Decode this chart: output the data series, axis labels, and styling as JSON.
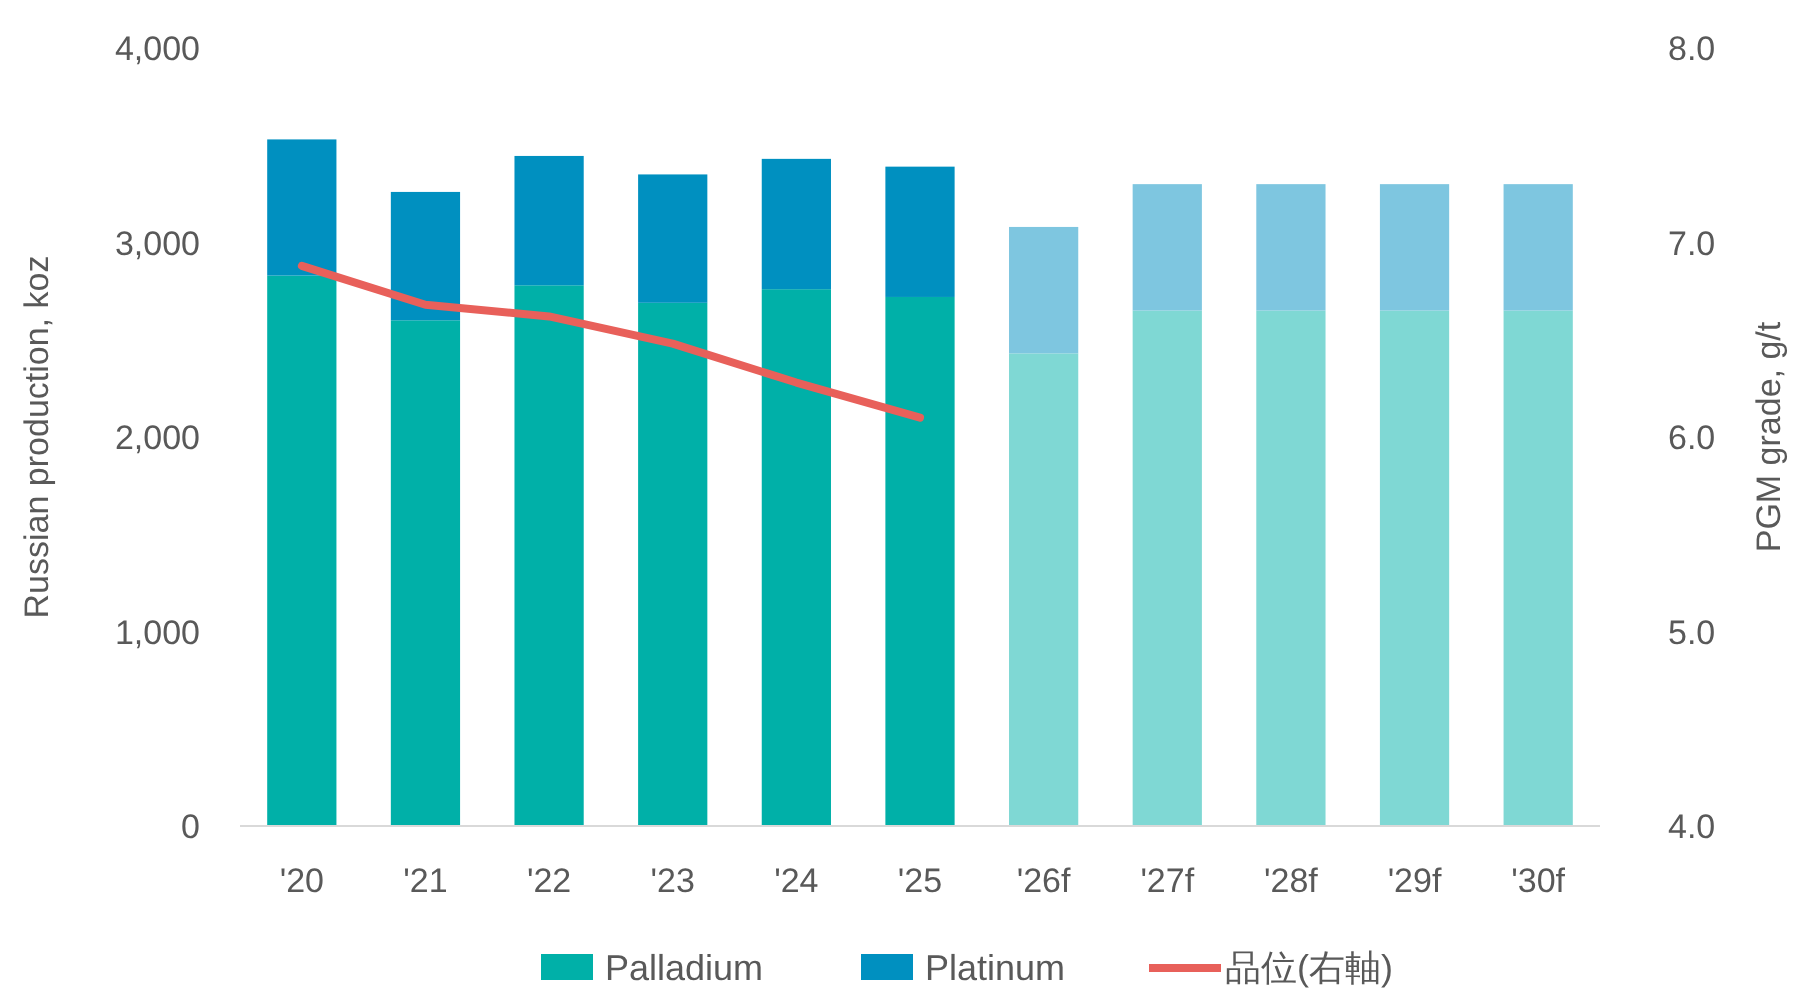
{
  "chart_data": {
    "type": "bar",
    "stacked": true,
    "ylabel": "Russian production, koz",
    "y2label": "PGM grade, g/t",
    "categories": [
      "'20",
      "'21",
      "'22",
      "'23",
      "'24",
      "'25",
      "'26f",
      "'27f",
      "'28f",
      "'29f",
      "'30f"
    ],
    "series": [
      {
        "name": "Palladium",
        "color": "#00b0a8",
        "colors": [
          "#00b0a8",
          "#00b0a8",
          "#00b0a8",
          "#00b0a8",
          "#00b0a8",
          "#00b0a8",
          "#7fd8d4",
          "#7fd8d4",
          "#7fd8d4",
          "#7fd8d4",
          "#7fd8d4"
        ],
        "values": [
          2830,
          2600,
          2780,
          2690,
          2760,
          2720,
          2430,
          2650,
          2650,
          2650,
          2650
        ]
      },
      {
        "name": "Platinum",
        "color": "#0090c0",
        "colors": [
          "#0090c0",
          "#0090c0",
          "#0090c0",
          "#0090c0",
          "#0090c0",
          "#0090c0",
          "#7ec6e0",
          "#7ec6e0",
          "#7ec6e0",
          "#7ec6e0",
          "#7ec6e0"
        ],
        "values": [
          700,
          660,
          665,
          660,
          670,
          670,
          650,
          650,
          650,
          650,
          650
        ]
      },
      {
        "name": "品位(右軸)",
        "type": "line",
        "axis": "y2",
        "color": "#e8605a",
        "values": [
          6.88,
          6.68,
          6.62,
          6.48,
          6.28,
          6.1,
          null,
          null,
          null,
          null,
          null
        ]
      }
    ],
    "ylim": [
      0,
      4000
    ],
    "yticks": [
      {
        "value": 0,
        "label": "0"
      },
      {
        "value": 1000,
        "label": "1,000"
      },
      {
        "value": 2000,
        "label": "2,000"
      },
      {
        "value": 3000,
        "label": "3,000"
      },
      {
        "value": 4000,
        "label": "4,000"
      }
    ],
    "y2lim": [
      4,
      8
    ],
    "y2ticks": [
      {
        "value": 4,
        "label": "4.0"
      },
      {
        "value": 5,
        "label": "5.0"
      },
      {
        "value": 6,
        "label": "6.0"
      },
      {
        "value": 7,
        "label": "7.0"
      },
      {
        "value": 8,
        "label": "8.0"
      }
    ],
    "legend": "bottom"
  }
}
